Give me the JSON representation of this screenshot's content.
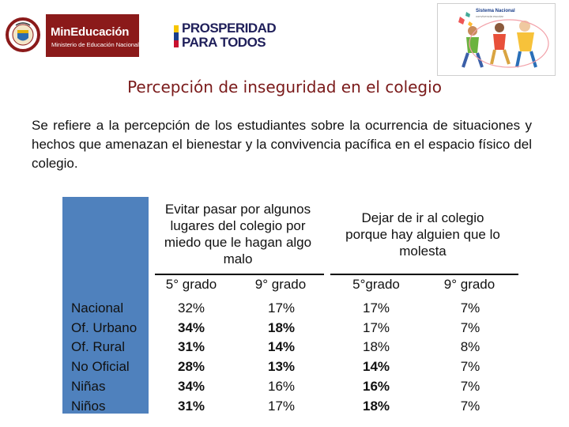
{
  "header": {
    "logo_seal": {
      "top_text": "REPÚBLICA",
      "bottom_text": "DE COLOMBIA"
    },
    "logo_mineducacion": {
      "name": "MinEducación",
      "subtitle": "Ministerio de Educación Nacional"
    },
    "logo_prosperidad": {
      "line1": "PROSPERIDAD",
      "line2": "PARA TODOS"
    },
    "logo_sistema": {
      "title": "Sistema Nacional",
      "subtitle": "convivencia escolar"
    }
  },
  "title": "Percepción de inseguridad en el colegio",
  "intro": "Se refiere a la percepción de los estudiantes sobre la ocurrencia de situaciones y hechos que amenazan el bienestar y la convivencia pacífica en el espacio físico del colegio.",
  "table": {
    "group1": [
      "Evitar pasar por algunos",
      "lugares del colegio por",
      "miedo que le hagan algo",
      "malo"
    ],
    "group2": [
      "Dejar de ir al colegio",
      "porque hay alguien que lo",
      "molesta"
    ],
    "grades": [
      "5° grado",
      "9° grado",
      "5°grado",
      "9° grado"
    ],
    "rows": [
      {
        "label": "Nacional",
        "values": [
          "32%",
          "17%",
          "17%",
          "7%"
        ],
        "bold": [
          false,
          false,
          false,
          false
        ]
      },
      {
        "label": "Of. Urbano",
        "values": [
          "34%",
          "18%",
          "17%",
          "7%"
        ],
        "bold": [
          true,
          true,
          false,
          false
        ]
      },
      {
        "label": "Of. Rural",
        "values": [
          "31%",
          "14%",
          "18%",
          "8%"
        ],
        "bold": [
          true,
          true,
          false,
          false
        ]
      },
      {
        "label": "No Oficial",
        "values": [
          "28%",
          "13%",
          "14%",
          "7%"
        ],
        "bold": [
          true,
          true,
          true,
          false
        ]
      },
      {
        "label": "Niñas",
        "values": [
          "34%",
          "16%",
          "16%",
          "7%"
        ],
        "bold": [
          true,
          false,
          true,
          false
        ]
      },
      {
        "label": "Niños",
        "values": [
          "31%",
          "17%",
          "18%",
          "7%"
        ],
        "bold": [
          true,
          false,
          true,
          false
        ]
      }
    ]
  },
  "colors": {
    "title": "#7a1a1a",
    "table_blue": "#4f81bd",
    "mineducacion": "#8b1a1a"
  }
}
